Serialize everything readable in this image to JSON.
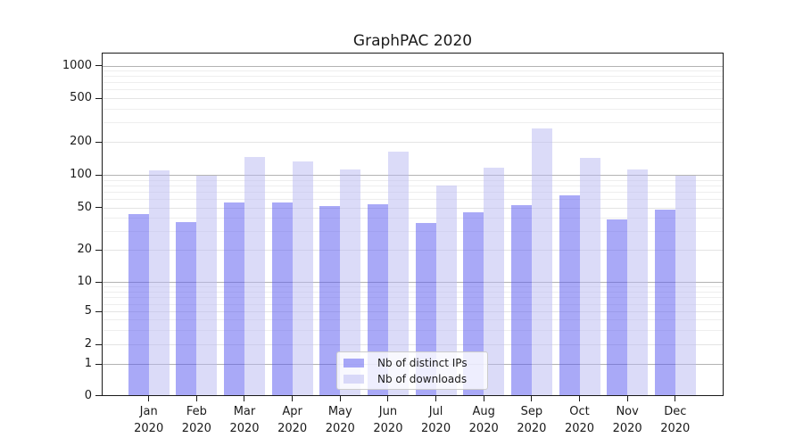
{
  "title": "GraphPAC 2020",
  "colors": {
    "ips_bar_base": "#5353ef",
    "downloads_bar_base": "#b7b7f2",
    "ips_bar_fill": "rgba(83,83,239,0.5)",
    "downloads_bar_fill": "rgba(183,183,242,0.5)",
    "axis": "#1a1a1a",
    "grid_major": "#b3b3b3",
    "grid_minor": "#eeeeee"
  },
  "chart_data": {
    "type": "bar",
    "title": "GraphPAC 2020",
    "categories": [
      "Jan",
      "Feb",
      "Mar",
      "Apr",
      "May",
      "Jun",
      "Jul",
      "Aug",
      "Sep",
      "Oct",
      "Nov",
      "Dec"
    ],
    "category_year": "2020",
    "x_tick_labels": [
      [
        "Jan",
        "2020"
      ],
      [
        "Feb",
        "2020"
      ],
      [
        "Mar",
        "2020"
      ],
      [
        "Apr",
        "2020"
      ],
      [
        "May",
        "2020"
      ],
      [
        "Jun",
        "2020"
      ],
      [
        "Jul",
        "2020"
      ],
      [
        "Aug",
        "2020"
      ],
      [
        "Sep",
        "2020"
      ],
      [
        "Oct",
        "2020"
      ],
      [
        "Nov",
        "2020"
      ],
      [
        "Dec",
        "2020"
      ]
    ],
    "series": [
      {
        "name": "Nb of distinct IPs",
        "color": "rgba(83,83,239,0.5)",
        "values": [
          44,
          37,
          56,
          56,
          52,
          54,
          36,
          46,
          53,
          66,
          39,
          48
        ]
      },
      {
        "name": "Nb of downloads",
        "color": "rgba(183,183,242,0.5)",
        "values": [
          110,
          100,
          146,
          134,
          114,
          165,
          80,
          118,
          265,
          143,
          112,
          100
        ]
      }
    ],
    "xlabel": "",
    "ylabel": "",
    "yscale": "symlog",
    "y_ticks": [
      0,
      1,
      2,
      5,
      10,
      20,
      50,
      100,
      200,
      500,
      1000
    ],
    "ylim": [
      0,
      1300
    ],
    "grid": "on",
    "legend_position": "lower center"
  }
}
